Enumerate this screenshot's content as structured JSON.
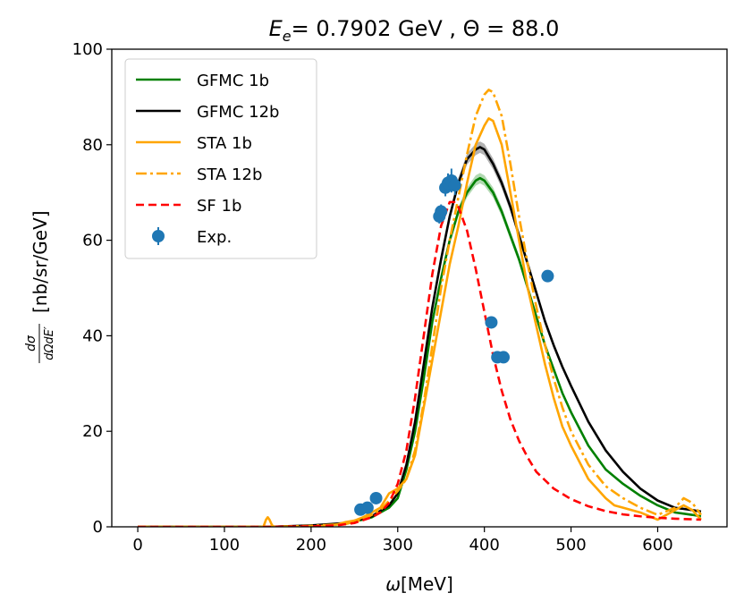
{
  "chart_data": {
    "type": "line",
    "title_parts": {
      "e_sym": "E",
      "e_sub": "e",
      "energy": "= 0.7902 GeV , Θ = 88.0"
    },
    "xlabel_parts": {
      "omega": "ω",
      "unit": "[MeV]"
    },
    "ylabel_parts": {
      "frac_num": "dσ",
      "frac_den": "dΩdE′",
      "unit": "[nb/sr/GeV]"
    },
    "xlim": [
      -30,
      680
    ],
    "ylim": [
      0,
      100
    ],
    "xticks": [
      0,
      100,
      200,
      300,
      400,
      500,
      600
    ],
    "yticks": [
      0,
      20,
      40,
      60,
      80,
      100
    ],
    "legend_position": "upper-left",
    "series": [
      {
        "name": "GFMC 1b",
        "color": "#008000",
        "style": "solid",
        "band": true,
        "x": [
          0,
          150,
          200,
          240,
          270,
          290,
          300,
          310,
          320,
          330,
          340,
          350,
          360,
          370,
          380,
          390,
          395,
          400,
          410,
          420,
          430,
          440,
          450,
          460,
          470,
          480,
          490,
          500,
          520,
          540,
          560,
          580,
          600,
          620,
          640,
          650
        ],
        "y": [
          0,
          0,
          0.2,
          0.6,
          2,
          4,
          6,
          12,
          20,
          31,
          43,
          52,
          60,
          66,
          70,
          72.5,
          73,
          72.5,
          70,
          66,
          61,
          56,
          50,
          44,
          38,
          33,
          28,
          24,
          17,
          12,
          9,
          6.5,
          4.5,
          3,
          2.5,
          2.2
        ]
      },
      {
        "name": "GFMC 12b",
        "color": "#000000",
        "style": "solid",
        "band": true,
        "x": [
          0,
          150,
          200,
          240,
          270,
          290,
          300,
          310,
          320,
          330,
          340,
          350,
          360,
          370,
          380,
          390,
          395,
          400,
          410,
          420,
          430,
          440,
          450,
          460,
          470,
          480,
          490,
          500,
          520,
          540,
          560,
          580,
          600,
          620,
          640,
          650
        ],
        "y": [
          0,
          0,
          0.3,
          0.8,
          2.2,
          4.5,
          7,
          13,
          22,
          34,
          46,
          56,
          65,
          72,
          77,
          79,
          79.5,
          79,
          76,
          72,
          67,
          61,
          55,
          49,
          43,
          38,
          33.5,
          29.5,
          22,
          16,
          11.5,
          8,
          5.5,
          4,
          3.5,
          3.2
        ]
      },
      {
        "name": "STA 1b",
        "color": "#ffa500",
        "style": "solid",
        "band": false,
        "x": [
          0,
          145,
          148,
          150,
          152,
          155,
          158,
          200,
          230,
          240,
          250,
          260,
          270,
          280,
          290,
          300,
          310,
          320,
          330,
          340,
          350,
          360,
          370,
          380,
          390,
          400,
          405,
          410,
          420,
          430,
          440,
          450,
          460,
          470,
          480,
          490,
          500,
          520,
          540,
          550,
          560,
          580,
          600,
          620,
          630,
          640,
          650
        ],
        "y": [
          0,
          0,
          1.5,
          2,
          1.5,
          0.3,
          0,
          0,
          0.5,
          1,
          1.3,
          2,
          3,
          4,
          7,
          8,
          10,
          15,
          25,
          35,
          45,
          55,
          63,
          72,
          80,
          84,
          85.5,
          85,
          80,
          70,
          60,
          50,
          42,
          34,
          27,
          21,
          17,
          10,
          6,
          4.5,
          4,
          3,
          1.5,
          3.5,
          4.5,
          3.5,
          1.5
        ]
      },
      {
        "name": "STA 12b",
        "color": "#ffa500",
        "style": "dashdot",
        "band": false,
        "x": [
          0,
          150,
          200,
          240,
          260,
          280,
          290,
          300,
          310,
          320,
          330,
          340,
          350,
          360,
          370,
          380,
          390,
          400,
          405,
          410,
          420,
          430,
          440,
          450,
          460,
          470,
          480,
          490,
          500,
          520,
          540,
          560,
          580,
          600,
          620,
          630,
          640,
          650
        ],
        "y": [
          0,
          0,
          0.2,
          0.6,
          1.5,
          3.5,
          5.5,
          7.5,
          10,
          16,
          26,
          38,
          50,
          60,
          69,
          78,
          86,
          90.5,
          91.5,
          91,
          86,
          76,
          65,
          55,
          46,
          38,
          31,
          25,
          20,
          13,
          8.5,
          6,
          4,
          2.5,
          4,
          6,
          5,
          2.5
        ]
      },
      {
        "name": "SF 1b",
        "color": "#ff0000",
        "style": "dashed",
        "band": false,
        "x": [
          0,
          150,
          200,
          230,
          250,
          270,
          280,
          290,
          300,
          310,
          320,
          330,
          340,
          350,
          360,
          365,
          370,
          380,
          390,
          400,
          410,
          420,
          430,
          440,
          450,
          460,
          480,
          500,
          520,
          540,
          560,
          580,
          600,
          620,
          650
        ],
        "y": [
          0,
          0,
          0.1,
          0.3,
          0.8,
          2,
          3,
          5,
          9,
          16,
          27,
          40,
          53,
          63,
          68,
          68,
          67,
          62,
          54,
          45,
          36,
          28.5,
          22.5,
          18,
          14.5,
          11.5,
          8,
          5.8,
          4.3,
          3.3,
          2.6,
          2.2,
          1.9,
          1.7,
          1.5
        ]
      }
    ],
    "experimental": {
      "name": "Exp.",
      "color": "#1f77b4",
      "points": [
        {
          "x": 257,
          "y": 3.6,
          "err": 1.0
        },
        {
          "x": 265,
          "y": 4.0,
          "err": 1.0
        },
        {
          "x": 275,
          "y": 6.0,
          "err": 1.2
        },
        {
          "x": 348,
          "y": 65.0,
          "err": 1.5
        },
        {
          "x": 350,
          "y": 66.0,
          "err": 1.5
        },
        {
          "x": 355,
          "y": 71.0,
          "err": 1.8
        },
        {
          "x": 358,
          "y": 72.0,
          "err": 2.0
        },
        {
          "x": 362,
          "y": 72.5,
          "err": 2.5
        },
        {
          "x": 366,
          "y": 71.5,
          "err": 2.0
        },
        {
          "x": 408,
          "y": 42.8,
          "err": 1.0
        },
        {
          "x": 415,
          "y": 35.5,
          "err": 1.0
        },
        {
          "x": 422,
          "y": 35.5,
          "err": 1.0
        },
        {
          "x": 473,
          "y": 52.5,
          "err": 1.0
        }
      ]
    }
  }
}
